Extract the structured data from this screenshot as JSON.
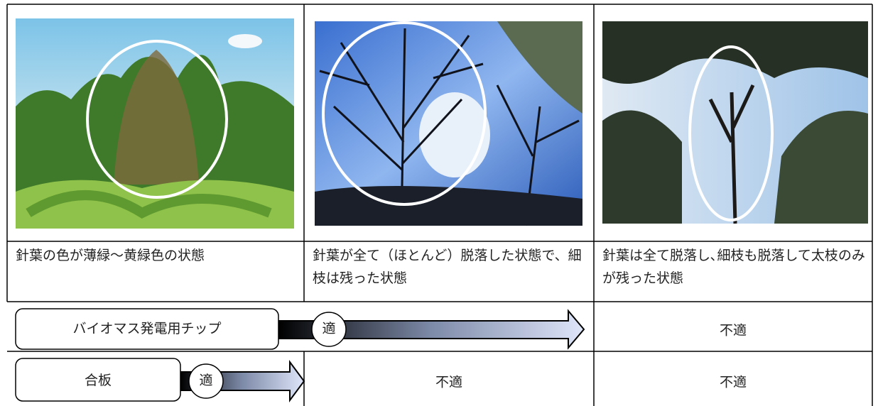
{
  "descriptions": [
    "針葉の色が薄緑～黄緑色の状態",
    "針葉が全て（ほとんど）脱落した状態で、細枝は残った状態",
    "針葉は全て脱落し､細枝も脱落して太枝のみが残った状態"
  ],
  "uses": [
    {
      "name": "バイオマス発電用チップ",
      "suitable": "適",
      "unsuitable": [
        "不適"
      ]
    },
    {
      "name": "合板",
      "suitable": "適",
      "unsuitable": [
        "不適",
        "不適"
      ]
    }
  ]
}
